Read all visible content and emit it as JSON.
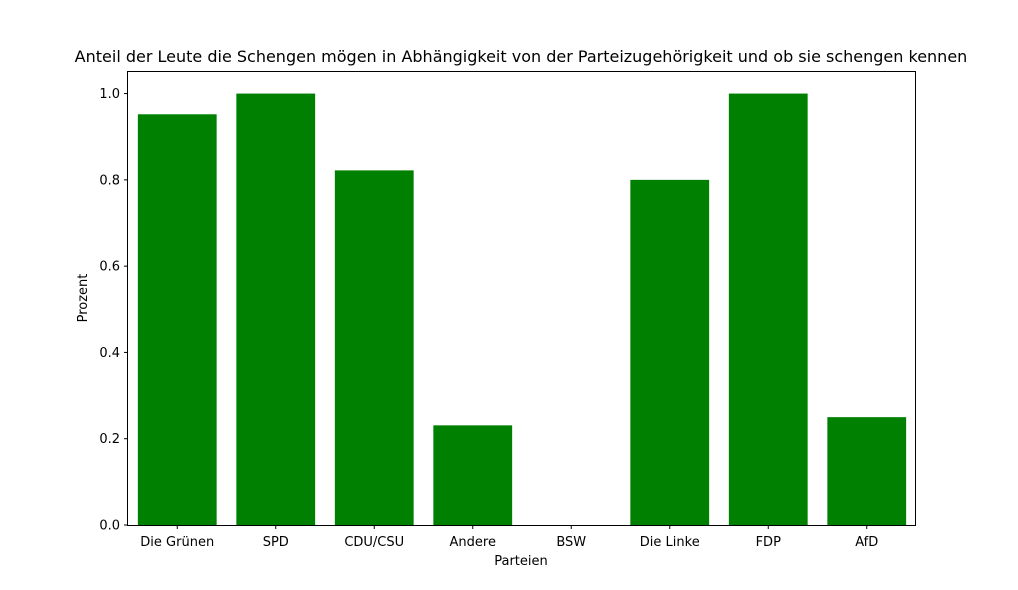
{
  "chart_data": {
    "type": "bar",
    "title": "Anteil der Leute die Schengen mögen in Abhängigkeit von der Parteizugehörigkeit und ob sie schengen kennen",
    "xlabel": "Parteien",
    "ylabel": "Prozent",
    "categories": [
      "Die Grünen",
      "SPD",
      "CDU/CSU",
      "Andere",
      "BSW",
      "Die Linke",
      "FDP",
      "AfD"
    ],
    "values": [
      0.952,
      1.0,
      0.822,
      0.231,
      0.0,
      0.8,
      1.0,
      0.25
    ],
    "ylim": [
      0.0,
      1.05
    ],
    "yticks": [
      "0.0",
      "0.2",
      "0.4",
      "0.6",
      "0.8",
      "1.0"
    ],
    "bar_color": "#008000",
    "grid": false,
    "legend": "none"
  }
}
